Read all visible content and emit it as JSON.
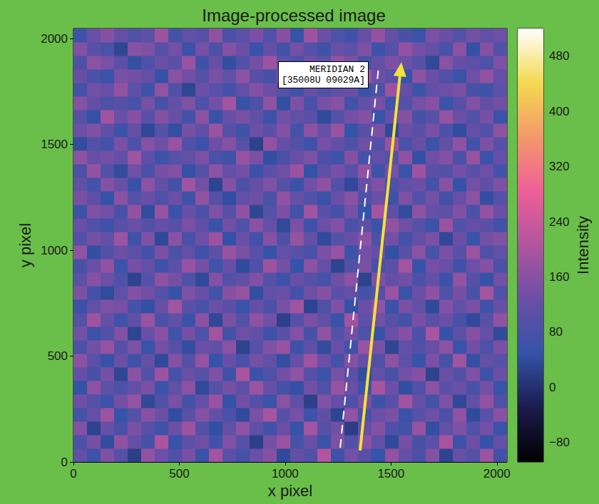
{
  "chart_data": {
    "type": "heatmap",
    "title": "Image-processed image",
    "x_label": "x pixel",
    "y_label": "y pixel",
    "xlim": [
      0,
      2048
    ],
    "ylim": [
      0,
      2048
    ],
    "xticks": [
      0,
      500,
      1000,
      1500,
      2000
    ],
    "yticks": [
      0,
      500,
      1000,
      1500,
      2000
    ],
    "x_edges": [
      0,
      64,
      128,
      192,
      256,
      320,
      384,
      448,
      512,
      576,
      640,
      704,
      768,
      832,
      896,
      960,
      1024,
      1088,
      1152,
      1216,
      1280,
      1344,
      1408,
      1472,
      1536,
      1600,
      1664,
      1728,
      1792,
      1856,
      1920,
      1984,
      2048
    ],
    "y_edges": [
      0,
      64,
      128,
      192,
      256,
      320,
      384,
      448,
      512,
      576,
      640,
      704,
      768,
      832,
      896,
      960,
      1024,
      1088,
      1152,
      1216,
      1280,
      1344,
      1408,
      1472,
      1536,
      1600,
      1664,
      1728,
      1792,
      1856,
      1920,
      1984,
      2048
    ],
    "cells": [
      [
        112,
        64,
        150,
        98,
        21,
        175,
        130,
        86,
        143,
        57,
        190,
        104,
        72,
        126,
        160,
        35,
        118,
        92,
        208,
        66,
        137,
        101,
        49,
        172,
        115,
        83,
        156,
        28,
        124,
        95,
        181,
        70
      ],
      [
        88,
        142,
        40,
        167,
        120,
        76,
        199,
        54,
        110,
        133,
        68,
        152,
        95,
        23,
        138,
        181,
        74,
        126,
        59,
        148,
        90,
        163,
        112,
        37,
        140,
        79,
        106,
        195,
        61,
        130,
        48,
        117
      ],
      [
        155,
        27,
        123,
        80,
        146,
        102,
        62,
        131,
        185,
        90,
        44,
        117,
        170,
        108,
        65,
        129,
        52,
        190,
        97,
        134,
        18,
        121,
        158,
        85,
        67,
        176,
        43,
        114,
        149,
        92,
        136,
        60
      ],
      [
        73,
        118,
        184,
        52,
        96,
        160,
        128,
        41,
        102,
        157,
        119,
        83,
        36,
        145,
        194,
        99,
        141,
        63,
        111,
        29,
        170,
        78,
        127,
        144,
        56,
        103,
        132,
        81,
        170,
        38,
        105,
        161
      ],
      [
        131,
        95,
        61,
        139,
        175,
        33,
        87,
        146,
        69,
        121,
        178,
        48,
        134,
        92,
        58,
        162,
        107,
        24,
        153,
        119,
        84,
        147,
        66,
        99,
        188,
        124,
        71,
        150,
        34,
        115,
        173,
        87
      ],
      [
        47,
        169,
        107,
        86,
        119,
        145,
        58,
        112,
        164,
        37,
        96,
        141,
        107,
        182,
        125,
        71,
        46,
        138,
        85,
        176,
        127,
        58,
        196,
        130,
        42,
        89,
        163,
        104,
        126,
        79,
        140,
        54
      ],
      [
        120,
        76,
        142,
        32,
        163,
        90,
        183,
        74,
        126,
        98,
        151,
        65,
        199,
        55,
        88,
        134,
        170,
        95,
        60,
        143,
        103,
        39,
        112,
        75,
        138,
        159,
        26,
        128,
        93,
        152,
        63,
        129
      ],
      [
        164,
        103,
        51,
        128,
        66,
        117,
        35,
        157,
        93,
        174,
        49,
        122,
        80,
        139,
        112,
        44,
        121,
        186,
        131,
        71,
        155,
        118,
        87,
        168,
        107,
        53,
        147,
        72,
        187,
        45,
        116,
        98
      ],
      [
        82,
        137,
        174,
        99,
        148,
        55,
        136,
        101,
        42,
        128,
        112,
        163,
        27,
        97,
        151,
        178,
        62,
        109,
        40,
        124,
        67,
        180,
        143,
        31,
        116,
        93,
        123,
        165,
        57,
        134,
        84,
        147
      ],
      [
        136,
        59,
        89,
        153,
        30,
        127,
        161,
        68,
        140,
        85,
        190,
        73,
        131,
        115,
        63,
        106,
        154,
        76,
        171,
        96,
        139,
        85,
        52,
        126,
        160,
        81,
        198,
        49,
        108,
        157,
        121,
        38
      ],
      [
        97,
        184,
        122,
        64,
        110,
        179,
        82,
        116,
        57,
        165,
        33,
        143,
        92,
        168,
        135,
        22,
        99,
        145,
        113,
        57,
        188,
        110,
        135,
        97,
        69,
        142,
        101,
        128,
        79,
        36,
        102,
        170
      ],
      [
        59,
        115,
        148,
        140,
        76,
        45,
        123,
        189,
        106,
        78,
        128,
        104,
        55,
        120,
        80,
        143,
        187,
        28,
        86,
        150,
        46,
        129,
        170,
        60,
        145,
        113,
        36,
        153,
        116,
        147,
        66,
        124
      ],
      [
        148,
        71,
        39,
        111,
        156,
        134,
        97,
        52,
        149,
        122,
        71,
        159,
        176,
        43,
        113,
        126,
        68,
        133,
        160,
        104,
        119,
        72,
        93,
        181,
        54,
        127,
        167,
        88,
        141,
        75,
        192,
        90
      ],
      [
        104,
        160,
        127,
        85,
        27,
        98,
        167,
        139,
        88,
        35,
        154,
        92,
        117,
        151,
        100,
        61,
        124,
        98,
        73,
        132,
        167,
        26,
        150,
        117,
        135,
        83,
        114,
        59,
        171,
        97,
        50,
        135
      ],
      [
        76,
        128,
        171,
        58,
        141,
        119,
        61,
        105,
        177,
        140,
        67,
        121,
        38,
        86,
        183,
        139,
        49,
        164,
        119,
        28,
        91,
        143,
        79,
        106,
        190,
        52,
        138,
        124,
        64,
        130,
        158,
        81
      ],
      [
        171,
        43,
        94,
        132,
        107,
        70,
        146,
        84,
        118,
        61,
        107,
        178,
        143,
        104,
        52,
        118,
        101,
        81,
        147,
        177,
        58,
        137,
        122,
        45,
        99,
        162,
        77,
        146,
        103,
        181,
        87,
        112
      ],
      [
        93,
        139,
        117,
        184,
        62,
        150,
        34,
        163,
        75,
        132,
        183,
        46,
        126,
        67,
        159,
        87,
        175,
        114,
        37,
        98,
        125,
        164,
        87,
        138,
        71,
        118,
        145,
        33,
        127,
        56,
        138,
        153
      ],
      [
        126,
        87,
        64,
        103,
        128,
        93,
        121,
        99,
        144,
        109,
        57,
        134,
        90,
        162,
        121,
        35,
        144,
        62,
        131,
        155,
        81,
        107,
        59,
        172,
        133,
        95,
        55,
        182,
        89,
        118,
        105,
        67
      ],
      [
        58,
        150,
        138,
        76,
        173,
        39,
        178,
        55,
        124,
        81,
        149,
        101,
        169,
        31,
        96,
        145,
        68,
        188,
        106,
        74,
        140,
        49,
        195,
        109,
        40,
        167,
        121,
        107,
        151,
        82,
        172,
        128
      ],
      [
        145,
        108,
        49,
        162,
        96,
        124,
        85,
        130,
        63,
        172,
        95,
        42,
        114,
        133,
        77,
        170,
        119,
        91,
        54,
        126,
        161,
        88,
        128,
        66,
        148,
        92,
        139,
        70,
        124,
        162,
        44,
        96
      ],
      [
        112,
        67,
        155,
        124,
        51,
        167,
        113,
        70,
        188,
        137,
        28,
        153,
        82,
        118,
        149,
        99,
        56,
        135,
        169,
        93,
        35,
        119,
        151,
        84,
        114,
        129,
        73,
        161,
        48,
        135,
        109,
        150
      ],
      [
        83,
        173,
        91,
        40,
        135,
        80,
        142,
        152,
        46,
        99,
        166,
        117,
        137,
        59,
        104,
        132,
        182,
        47,
        110,
        142,
        104,
        170,
        63,
        141,
        57,
        186,
        104,
        93,
        137,
        103,
        131,
        73
      ],
      [
        167,
        125,
        136,
        114,
        187,
        109,
        60,
        97,
        116,
        147,
        81,
        64,
        175,
        145,
        43,
        81,
        126,
        149,
        83,
        66,
        156,
        74,
        117,
        100,
        169,
        45,
        133,
        154,
        80,
        176,
        59,
        122
      ],
      [
        40,
        94,
        72,
        146,
        85,
        157,
        132,
        178,
        91,
        59,
        131,
        158,
        96,
        24,
        172,
        119,
        93,
        61,
        140,
        117,
        88,
        131,
        92,
        178,
        81,
        123,
        61,
        112,
        168,
        68,
        148,
        99
      ],
      [
        130,
        151,
        109,
        63,
        118,
        33,
        97,
        43,
        141,
        111,
        179,
        99,
        62,
        130,
        106,
        154,
        71,
        166,
        124,
        177,
        49,
        103,
        145,
        35,
        127,
        104,
        147,
        83,
        41,
        119,
        94,
        165
      ],
      [
        99,
        46,
        188,
        127,
        160,
        99,
        155,
        124,
        70,
        165,
        52,
        123,
        144,
        112,
        60,
        137,
        113,
        102,
        38,
        95,
        136,
        160,
        54,
        123,
        157,
        76,
        97,
        175,
        126,
        91,
        142,
        57
      ],
      [
        158,
        119,
        84,
        98,
        72,
        141,
        76,
        115,
        149,
        85,
        137,
        189,
        51,
        85,
        167,
        43,
        148,
        79,
        143,
        158,
        71,
        113,
        140,
        68,
        92,
        140,
        160,
        58,
        100,
        154,
        111,
        136
      ],
      [
        71,
        137,
        124,
        171,
        109,
        63,
        170,
        88,
        31,
        127,
        102,
        71,
        119,
        156,
        128,
        96,
        64,
        123,
        90,
        113,
        127,
        56,
        87,
        182,
        116,
        63,
        111,
        130,
        143,
        79,
        66,
        108
      ],
      [
        125,
        82,
        57,
        143,
        134,
        120,
        48,
        162,
        134,
        96,
        146,
        114,
        166,
        98,
        73,
        152,
        174,
        58,
        159,
        46,
        97,
        183,
        131,
        103,
        49,
        167,
        128,
        90,
        57,
        133,
        172,
        120
      ],
      [
        88,
        163,
        145,
        106,
        45,
        86,
        127,
        104,
        178,
        66,
        123,
        42,
        93,
        139,
        183,
        108,
        87,
        132,
        107,
        170,
        143,
        76,
        118,
        148,
        130,
        99,
        35,
        163,
        120,
        107,
        85,
        150
      ],
      [
        153,
        105,
        77,
        31,
        161,
        149,
        97,
        138,
        59,
        141,
        87,
        158,
        128,
        55,
        120,
        69,
        138,
        96,
        64,
        125,
        110,
        148,
        60,
        95,
        173,
        138,
        116,
        77,
        165,
        46,
        157,
        93
      ],
      [
        66,
        128,
        160,
        118,
        92,
        109,
        181,
        73,
        113,
        104,
        168,
        80,
        107,
        147,
        91,
        160,
        52,
        185,
        128,
        88,
        66,
        124,
        172,
        114,
        79,
        56,
        145,
        124,
        97,
        139,
        112,
        131
      ]
    ],
    "colorbar": {
      "label": "Intensity",
      "range": [
        -108,
        520
      ],
      "ticks": [
        {
          "value": -80,
          "label": "−80"
        },
        0,
        80,
        160,
        240,
        320,
        400,
        480
      ],
      "colors": [
        "#000000",
        "#1b1b4d",
        "#3553a8",
        "#6a4fa6",
        "#b0559e",
        "#ee5f98",
        "#f4996a",
        "#f3d950",
        "#ffffff"
      ]
    },
    "annotation": {
      "lines": [
        "MERIDIAN 2",
        "[35008U 09029A]"
      ],
      "x": 1391,
      "y": 1829
    },
    "streak": {
      "x": [
        1260,
        1441
      ],
      "y": [
        67,
        1862
      ],
      "color": "#ffffff",
      "line_style": "dashed"
    },
    "arrow": {
      "x": [
        1354,
        1549
      ],
      "y": [
        54,
        1889
      ],
      "color": "#f2e33a"
    }
  }
}
